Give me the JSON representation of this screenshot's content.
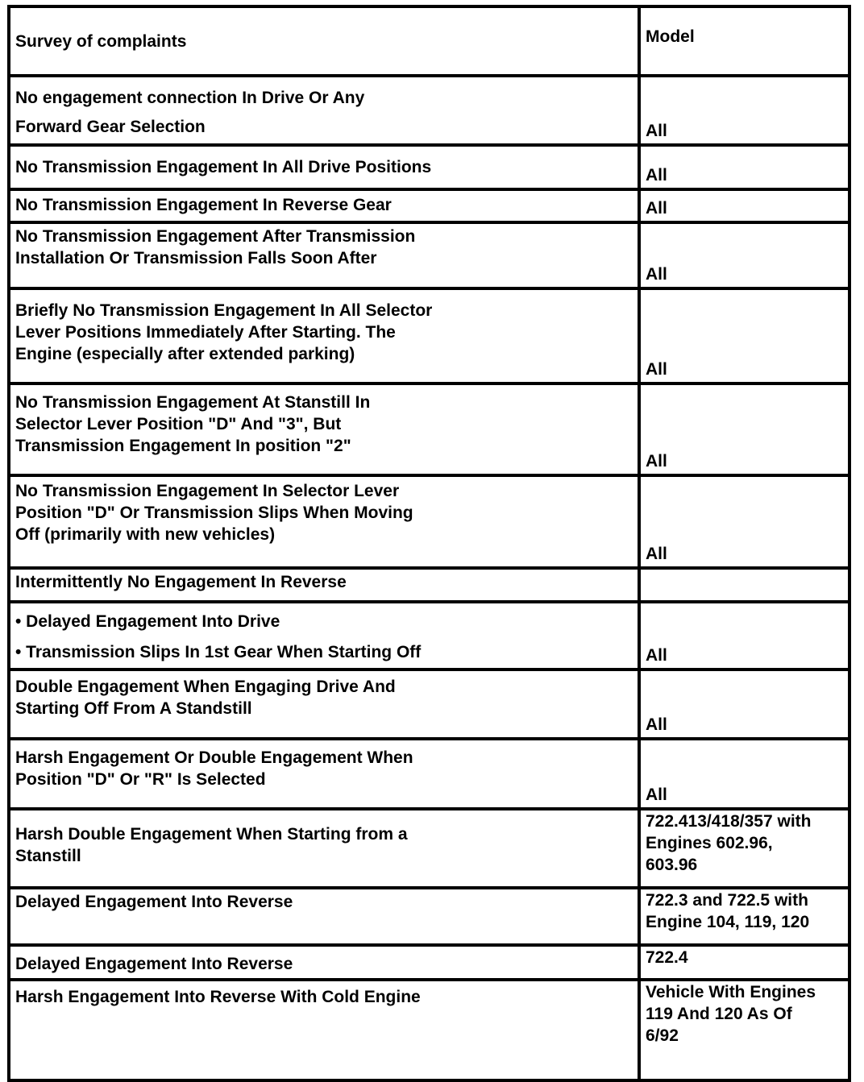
{
  "header": {
    "complaint": "Survey of complaints",
    "model": "Model"
  },
  "rows": [
    {
      "complaint": [
        "No engagement connection In Drive Or Any",
        "Forward Gear Selection"
      ],
      "model": "All"
    },
    {
      "complaint": [
        "No Transmission Engagement  In All Drive Positions"
      ],
      "model": "All"
    },
    {
      "complaint": [
        "No Transmission Engagement In Reverse Gear"
      ],
      "model": "All"
    },
    {
      "complaint": [
        "No Transmission Engagement After Transmission",
        "Installation Or Transmission Falls Soon After"
      ],
      "model": "All"
    },
    {
      "complaint": [
        "Briefly No Transmission Engagement In All Selector",
        "Lever Positions Immediately After Starting. The",
        "Engine (especially after extended parking)"
      ],
      "model": "All"
    },
    {
      "complaint": [
        "No Transmission Engagement At Stanstill In",
        "Selector Lever Position \"D\" And \"3\", But",
        "Transmission Engagement In position \"2\""
      ],
      "model": "All"
    },
    {
      "complaint": [
        "No Transmission Engagement In Selector Lever",
        "Position \"D\" Or Transmission Slips When Moving",
        "Off (primarily with new vehicles)"
      ],
      "model": "All"
    },
    {
      "complaint": [
        "Intermittently No Engagement In Reverse"
      ],
      "model": ""
    },
    {
      "complaint": [
        "• Delayed Engagement Into Drive",
        "• Transmission Slips In 1st Gear When Starting Off"
      ],
      "model": "All"
    },
    {
      "complaint": [
        "Double Engagement When Engaging Drive And",
        "Starting Off From A Standstill"
      ],
      "model": "All"
    },
    {
      "complaint": [
        "Harsh Engagement Or Double Engagement When",
        "Position \"D\" Or \"R\" Is Selected"
      ],
      "model": "All"
    },
    {
      "complaint": [
        "Harsh Double Engagement When Starting from a",
        "Stanstill"
      ],
      "model": [
        "722.413/418/357 with",
        "Engines 602.96,",
        "603.96"
      ]
    },
    {
      "complaint": [
        "Delayed Engagement Into Reverse"
      ],
      "model": [
        "722.3 and 722.5 with",
        "Engine 104, 119, 120"
      ]
    },
    {
      "complaint": [
        "Delayed Engagement Into Reverse"
      ],
      "model": [
        "722.4"
      ]
    },
    {
      "complaint": [
        "Harsh Engagement Into Reverse With Cold Engine"
      ],
      "model": [
        "Vehicle With Engines",
        "119 And 120 As Of",
        "6/92"
      ]
    }
  ]
}
